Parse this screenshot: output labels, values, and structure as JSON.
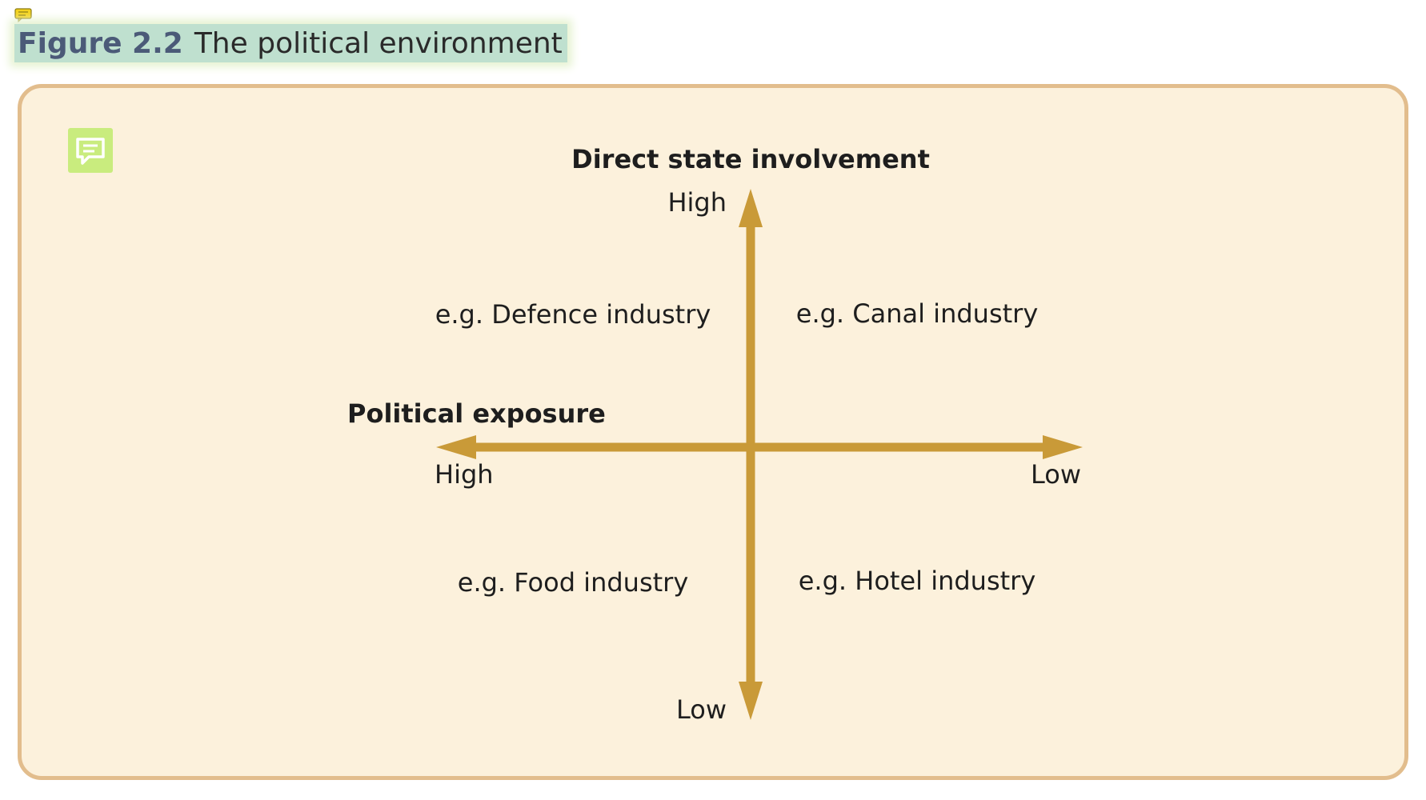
{
  "caption": {
    "figure_label": "Figure 2.2",
    "figure_title": "The political environment"
  },
  "diagram": {
    "vertical_axis": {
      "title": "Direct state involvement",
      "top_end": "High",
      "bottom_end": "Low"
    },
    "horizontal_axis": {
      "title": "Political exposure",
      "left_end": "High",
      "right_end": "Low"
    },
    "quadrants": {
      "top_left": "e.g. Defence industry",
      "top_right": "e.g. Canal industry",
      "bottom_left": "e.g. Food industry",
      "bottom_right": "e.g. Hotel industry"
    }
  },
  "colors": {
    "axis": "#c99a38",
    "panel_fill": "#fcf1dc",
    "panel_border": "#e2bd8d",
    "caption_highlight": "#bfe0cf",
    "note_icon": "#c9ec7e"
  },
  "icons": {
    "caption_note": "sticky-note-icon",
    "panel_note": "comment-icon"
  }
}
